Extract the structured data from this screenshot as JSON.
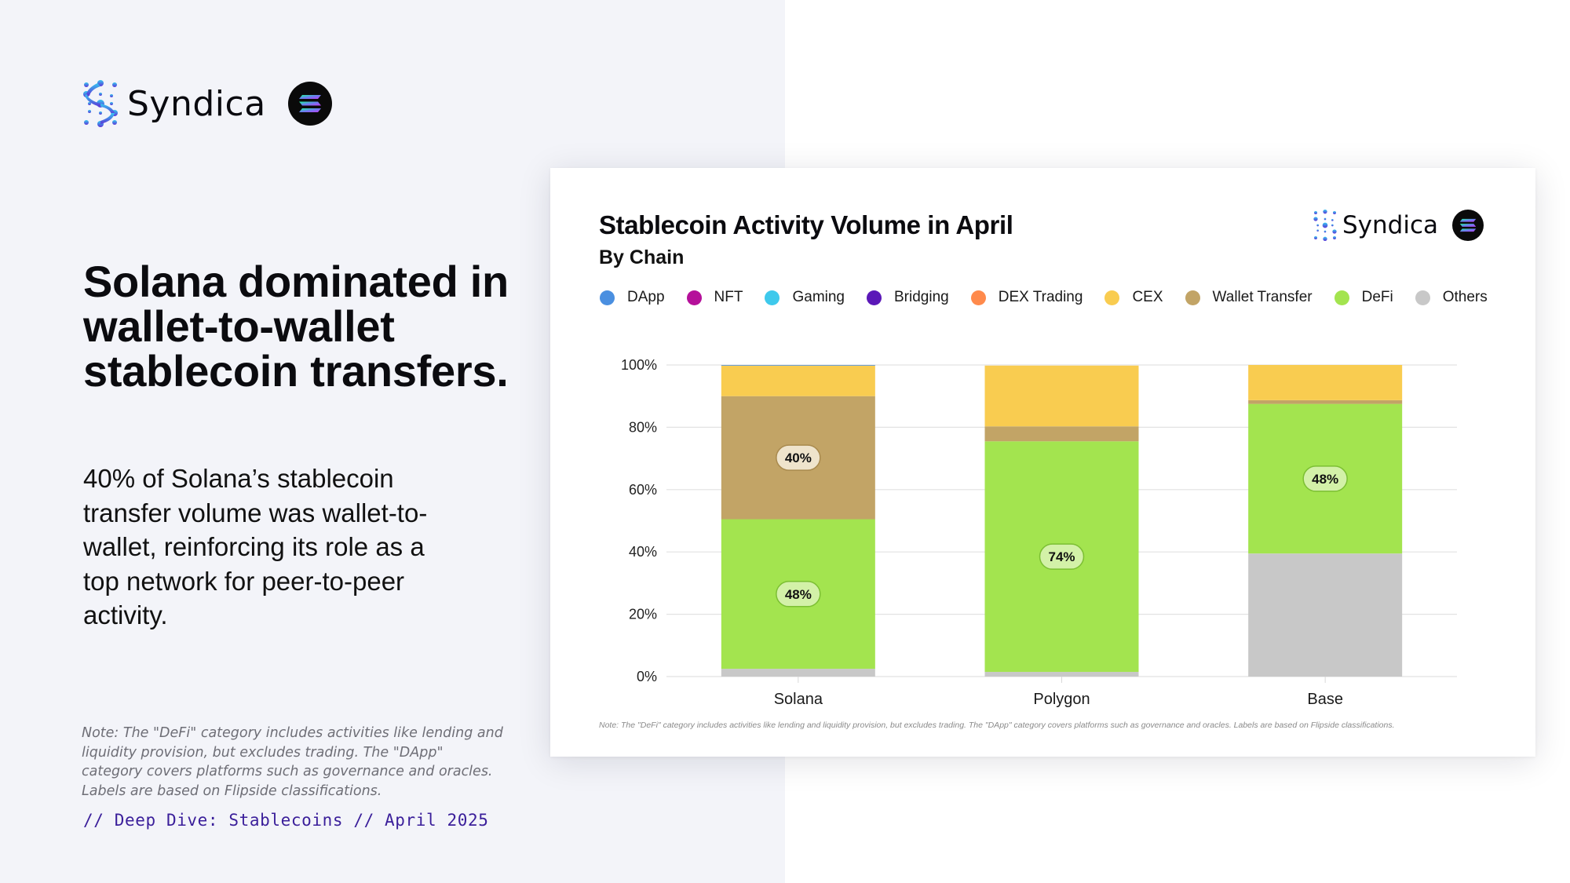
{
  "brand": {
    "name": "Syndica",
    "partner_icon": "solana-logo-icon"
  },
  "headline": "Solana dominated in wallet-to-wallet stablecoin transfers.",
  "subtext": "40% of Solana’s stablecoin transfer volume was wallet-to-wallet, reinforcing its role as a top network for peer-to-peer activity.",
  "note": "Note: The \"DeFi\" category includes activities like lending and liquidity provision, but excludes trading. The \"DApp\" category covers platforms such as governance and oracles. Labels are based on Flipside classifications.",
  "footer_tag": "// Deep Dive: Stablecoins // April 2025",
  "card": {
    "brand_name": "Syndica",
    "chart_note": "Note: The \"DeFi\" category includes activities like lending and liquidity provision, but excludes trading. The \"DApp\" category covers platforms such as governance and oracles. Labels are based on Flipside classifications."
  },
  "chart_data": {
    "type": "bar",
    "stacked": true,
    "title": "Stablecoin Activity Volume in April",
    "subtitle": "By Chain",
    "xlabel": "",
    "ylabel": "",
    "ylim": [
      0,
      100
    ],
    "y_ticks": [
      "0%",
      "20%",
      "40%",
      "60%",
      "80%",
      "100%"
    ],
    "y_tick_values": [
      0,
      20,
      40,
      60,
      80,
      100
    ],
    "grid": true,
    "legend_position": "top-left",
    "categories": [
      "Solana",
      "Polygon",
      "Base"
    ],
    "series": [
      {
        "name": "Others",
        "color": "#c8c8c8",
        "values": [
          2.5,
          1.5,
          39.5
        ]
      },
      {
        "name": "DeFi",
        "color": "#a3e44f",
        "values": [
          48,
          74,
          48
        ]
      },
      {
        "name": "Wallet Transfer",
        "color": "#c2a466",
        "values": [
          39.5,
          4.8,
          1.2
        ]
      },
      {
        "name": "CEX",
        "color": "#f9cc50",
        "values": [
          9.8,
          19.5,
          11.3
        ]
      },
      {
        "name": "DEX Trading",
        "color": "#ff8a4c",
        "values": [
          0,
          0,
          0
        ]
      },
      {
        "name": "Bridging",
        "color": "#5b18b8",
        "values": [
          0,
          0,
          0
        ]
      },
      {
        "name": "Gaming",
        "color": "#3ec9ec",
        "values": [
          0,
          0,
          0
        ]
      },
      {
        "name": "NFT",
        "color": "#b5109a",
        "values": [
          0,
          0,
          0
        ]
      },
      {
        "name": "DApp",
        "color": "#4a8fe0",
        "values": [
          0.2,
          0,
          0
        ]
      }
    ],
    "legend": [
      {
        "name": "DApp",
        "color": "#4a8fe0"
      },
      {
        "name": "NFT",
        "color": "#b5109a"
      },
      {
        "name": "Gaming",
        "color": "#3ec9ec"
      },
      {
        "name": "Bridging",
        "color": "#5b18b8"
      },
      {
        "name": "DEX Trading",
        "color": "#ff8a4c"
      },
      {
        "name": "CEX",
        "color": "#f9cc50"
      },
      {
        "name": "Wallet Transfer",
        "color": "#c2a466"
      },
      {
        "name": "DeFi",
        "color": "#a3e44f"
      },
      {
        "name": "Others",
        "color": "#c8c8c8"
      }
    ],
    "data_labels": [
      {
        "category": "Solana",
        "series": "Wallet Transfer",
        "text": "40%"
      },
      {
        "category": "Solana",
        "series": "DeFi",
        "text": "48%"
      },
      {
        "category": "Polygon",
        "series": "DeFi",
        "text": "74%"
      },
      {
        "category": "Base",
        "series": "DeFi",
        "text": "48%"
      }
    ]
  }
}
